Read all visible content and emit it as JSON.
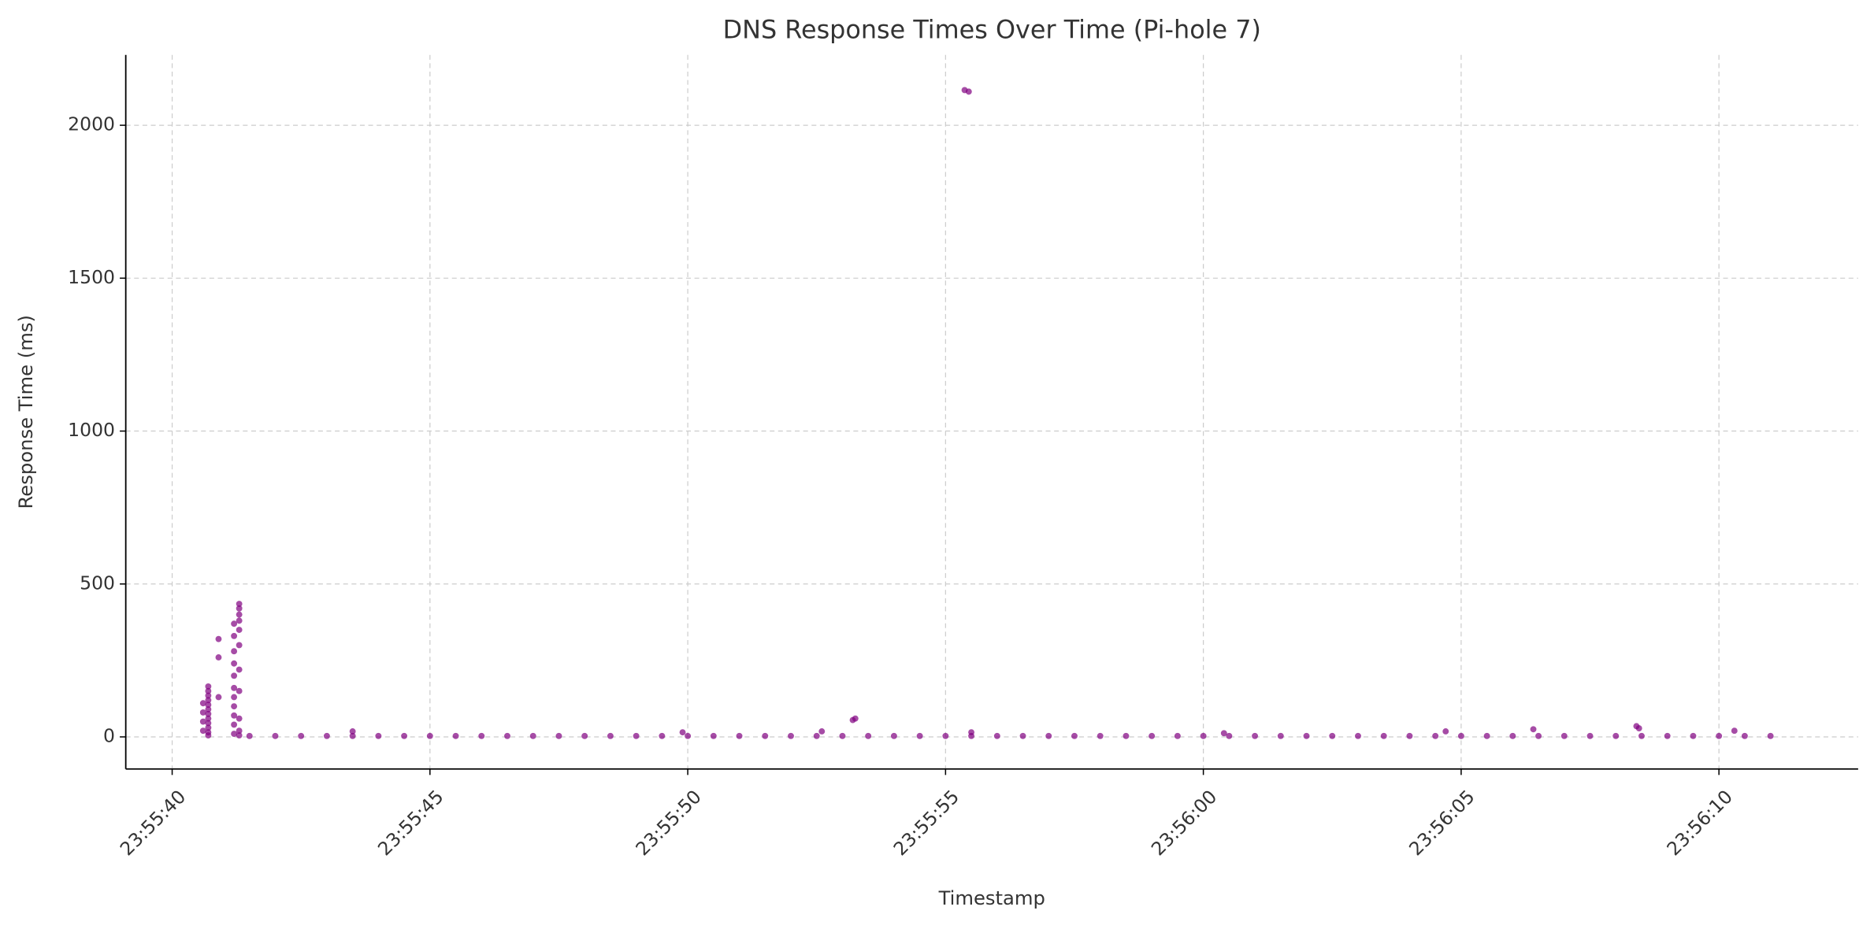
{
  "chart_data": {
    "type": "scatter",
    "title": "DNS Response Times Over Time (Pi-hole 7)",
    "x_label": "Timestamp",
    "y_label": "Response Time (ms)",
    "color": "#800080",
    "grid": true,
    "xlim": [
      "23:55:39.1",
      "23:56:12.7"
    ],
    "xticks": [
      "23:55:40",
      "23:55:45",
      "23:55:50",
      "23:55:55",
      "23:56:00",
      "23:56:05",
      "23:56:10"
    ],
    "ylim": [
      -105,
      2230
    ],
    "yticks": [
      0,
      500,
      1000,
      1500,
      2000
    ],
    "x": [
      "23:55:40.6",
      "23:55:40.6",
      "23:55:40.6",
      "23:55:40.6",
      "23:55:40.7",
      "23:55:40.7",
      "23:55:40.7",
      "23:55:40.7",
      "23:55:40.7",
      "23:55:40.7",
      "23:55:40.7",
      "23:55:40.7",
      "23:55:40.7",
      "23:55:40.7",
      "23:55:40.7",
      "23:55:40.7",
      "23:55:40.9",
      "23:55:40.9",
      "23:55:40.9",
      "23:55:41.2",
      "23:55:41.2",
      "23:55:41.2",
      "23:55:41.2",
      "23:55:41.2",
      "23:55:41.2",
      "23:55:41.2",
      "23:55:41.2",
      "23:55:41.2",
      "23:55:41.2",
      "23:55:41.2",
      "23:55:41.3",
      "23:55:41.3",
      "23:55:41.3",
      "23:55:41.3",
      "23:55:41.3",
      "23:55:41.3",
      "23:55:41.3",
      "23:55:41.3",
      "23:55:41.3",
      "23:55:41.3",
      "23:55:41.3",
      "23:55:41.5",
      "23:55:42.0",
      "23:55:42.5",
      "23:55:43.0",
      "23:55:43.5",
      "23:55:44.0",
      "23:55:44.5",
      "23:55:45.0",
      "23:55:45.5",
      "23:55:46.0",
      "23:55:46.5",
      "23:55:47.0",
      "23:55:47.5",
      "23:55:48.0",
      "23:55:48.5",
      "23:55:49.0",
      "23:55:49.5",
      "23:55:50.0",
      "23:55:50.5",
      "23:55:51.0",
      "23:55:51.5",
      "23:55:52.0",
      "23:55:52.5",
      "23:55:53.0",
      "23:55:53.5",
      "23:55:54.0",
      "23:55:54.5",
      "23:55:55.0",
      "23:55:55.5",
      "23:55:56.0",
      "23:55:56.5",
      "23:55:57.0",
      "23:55:57.5",
      "23:55:58.0",
      "23:55:58.5",
      "23:55:59.0",
      "23:55:59.5",
      "23:56:00.0",
      "23:56:00.5",
      "23:56:01.0",
      "23:56:01.5",
      "23:56:02.0",
      "23:56:02.5",
      "23:56:03.0",
      "23:56:03.5",
      "23:56:04.0",
      "23:56:04.5",
      "23:56:05.0",
      "23:56:05.5",
      "23:56:06.0",
      "23:56:06.5",
      "23:56:07.0",
      "23:56:07.5",
      "23:56:08.0",
      "23:56:08.5",
      "23:56:09.0",
      "23:56:09.5",
      "23:56:10.0",
      "23:56:10.5",
      "23:56:11.0",
      "23:55:43.5",
      "23:55:49.9",
      "23:55:52.6",
      "23:55:53.2",
      "23:55:53.25",
      "23:55:55.37",
      "23:55:55.45",
      "23:55:55.5",
      "23:56:00.4",
      "23:56:04.7",
      "23:56:06.4",
      "23:56:08.4",
      "23:56:08.45",
      "23:56:10.3"
    ],
    "values": [
      20,
      50,
      80,
      110,
      5,
      15,
      30,
      45,
      60,
      75,
      90,
      105,
      120,
      135,
      150,
      165,
      320,
      130,
      260,
      10,
      40,
      70,
      100,
      130,
      160,
      200,
      240,
      280,
      330,
      370,
      5,
      20,
      60,
      150,
      220,
      300,
      350,
      380,
      400,
      420,
      435,
      3,
      3,
      3,
      3,
      3,
      3,
      3,
      3,
      3,
      3,
      3,
      3,
      3,
      3,
      3,
      3,
      3,
      3,
      3,
      3,
      3,
      3,
      3,
      3,
      3,
      3,
      3,
      3,
      3,
      3,
      3,
      3,
      3,
      3,
      3,
      3,
      3,
      3,
      3,
      3,
      3,
      3,
      3,
      3,
      3,
      3,
      3,
      3,
      3,
      3,
      3,
      3,
      3,
      3,
      3,
      3,
      3,
      3,
      3,
      3,
      18,
      15,
      18,
      55,
      60,
      2115,
      2110,
      15,
      12,
      18,
      25,
      35,
      28,
      20
    ]
  }
}
